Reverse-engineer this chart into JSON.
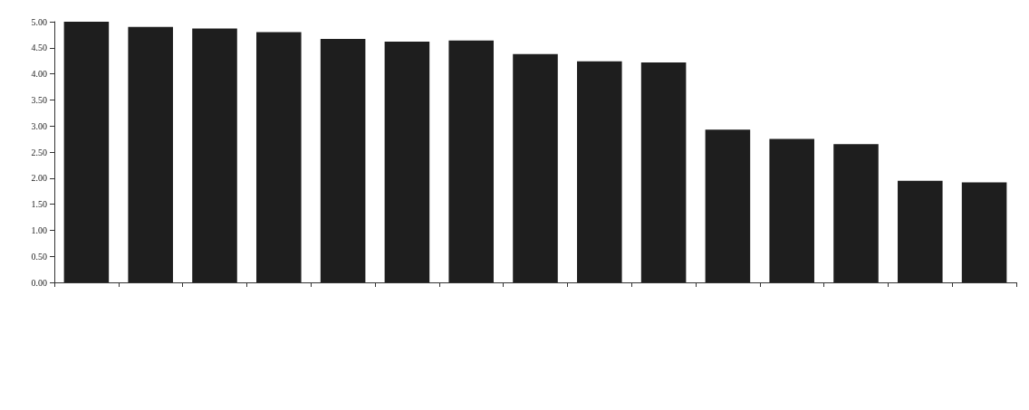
{
  "chart_data": {
    "type": "bar",
    "categories": [
      null,
      null,
      null,
      null,
      null,
      null,
      null,
      null,
      null,
      null,
      null,
      null,
      null,
      null,
      null
    ],
    "values": [
      5.0,
      4.9,
      4.87,
      4.8,
      4.67,
      4.62,
      4.64,
      4.38,
      4.24,
      4.22,
      2.93,
      2.75,
      2.65,
      1.95,
      1.92
    ],
    "color": "#1e1e1e",
    "ylim": [
      0,
      5
    ],
    "yticks": [
      {
        "value": 0,
        "label": "0.00"
      },
      {
        "value": 0.5,
        "label": "0.50"
      },
      {
        "value": 1,
        "label": "1.00"
      },
      {
        "value": 1.5,
        "label": "1.50"
      },
      {
        "value": 2,
        "label": "2.00"
      },
      {
        "value": 2.5,
        "label": "2.50"
      },
      {
        "value": 3,
        "label": "3.00"
      },
      {
        "value": 3.5,
        "label": "3.50"
      },
      {
        "value": 4,
        "label": "4.00"
      },
      {
        "value": 4.5,
        "label": "4.50"
      },
      {
        "value": 5,
        "label": "5.00"
      }
    ],
    "grid": false
  }
}
